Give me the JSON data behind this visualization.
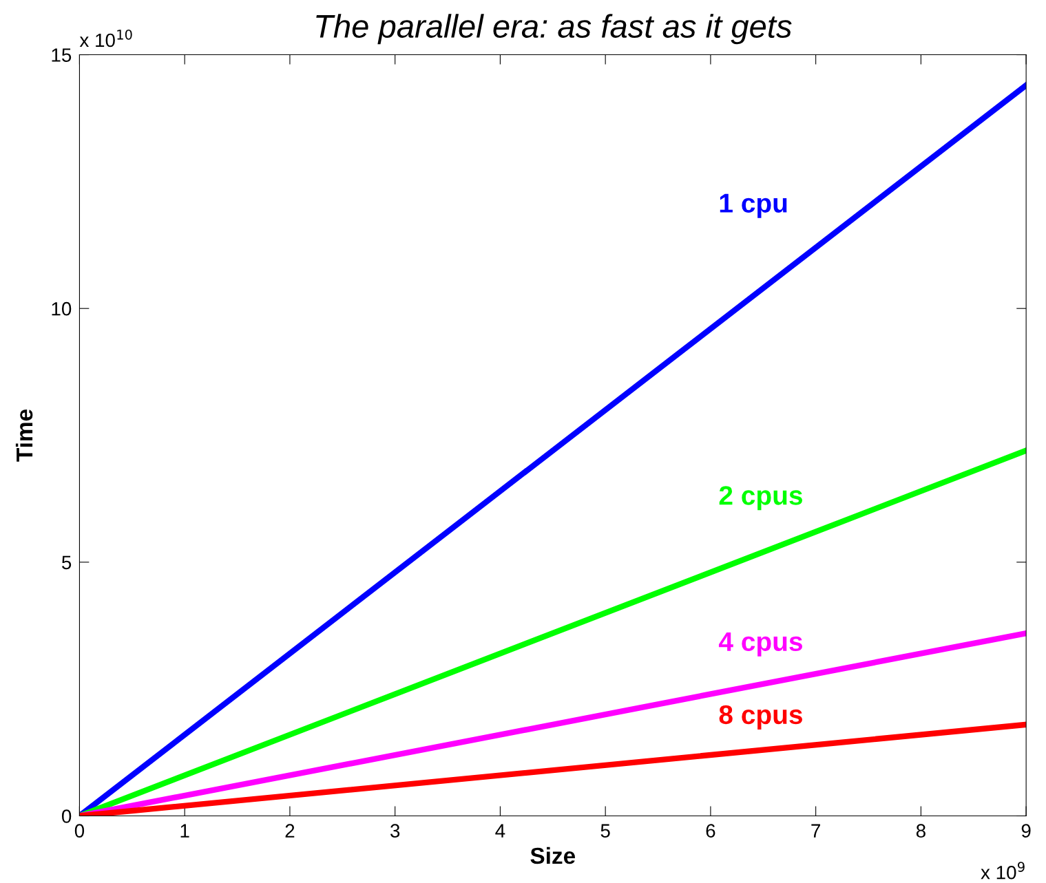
{
  "chart_data": {
    "type": "line",
    "title": "The parallel era: as fast as it gets",
    "xlabel": "Size",
    "ylabel": "Time",
    "x": [
      0,
      9
    ],
    "series": [
      {
        "name": "1 cpu",
        "color": "#0000ff",
        "values": [
          0,
          14.4
        ]
      },
      {
        "name": "2 cpus",
        "color": "#00ff00",
        "values": [
          0,
          7.2
        ]
      },
      {
        "name": "4 cpus",
        "color": "#ff00ff",
        "values": [
          0,
          3.6
        ]
      },
      {
        "name": "8 cpus",
        "color": "#ff0000",
        "values": [
          0,
          1.8
        ]
      }
    ],
    "xlim": [
      0,
      9
    ],
    "xticks": [
      0,
      1,
      2,
      3,
      4,
      5,
      6,
      7,
      8,
      9
    ],
    "ylim": [
      0,
      15
    ],
    "yticks": [
      0,
      5,
      10,
      15
    ],
    "annotations": [
      "x 10$^{9}$",
      "x 10$^{10}$"
    ],
    "grid": false,
    "legend": false,
    "marker": "none",
    "line_style": "solid"
  }
}
